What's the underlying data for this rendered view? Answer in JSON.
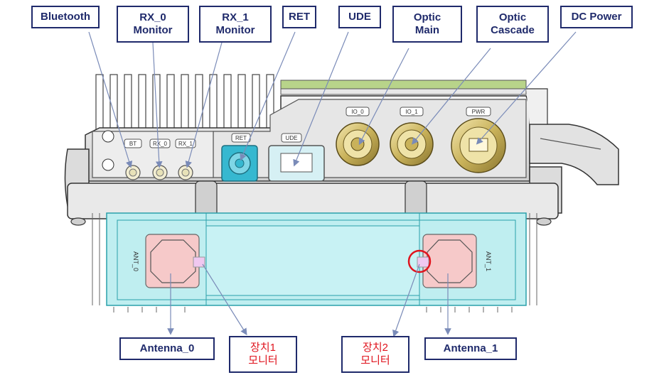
{
  "labels": {
    "bluetooth": "Bluetooth",
    "rx0": [
      "RX_0",
      "Monitor"
    ],
    "rx1": [
      "RX_1",
      "Monitor"
    ],
    "ret": "RET",
    "ude": "UDE",
    "optic_main": [
      "Optic",
      "Main"
    ],
    "optic_cascade": [
      "Optic",
      "Cascade"
    ],
    "dc_power": "DC Power",
    "antenna0": "Antenna_0",
    "antenna1": "Antenna_1",
    "device1_monitor": [
      "장치1",
      "모니터"
    ],
    "device2_monitor": [
      "장치2",
      "모니터"
    ]
  },
  "device_marks": {
    "bt": "BT",
    "rx0": "RX_0",
    "rx1": "RX_1",
    "ret": "RET",
    "ude": "UDE",
    "io0": "IO_0",
    "io1": "IO_1",
    "pwr": "PWR",
    "ant0": "ANT_0",
    "ant1": "ANT_1"
  },
  "colors": {
    "label_border": "#1f2a6b",
    "label_text": "#1f2a6b",
    "korean_text": "#e0141e",
    "arrow": "#7a8bb8",
    "antenna_housing": "#bfeef0",
    "ret_port": "#36b8d0",
    "optic_brass": "#c9b25a",
    "highlight_circle": "#e0141e"
  }
}
